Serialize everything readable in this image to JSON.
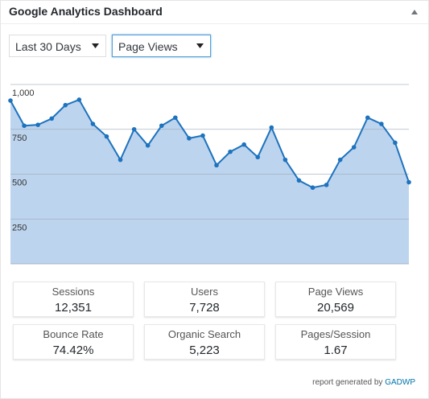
{
  "widget": {
    "title": "Google Analytics Dashboard",
    "toggle_icon": "collapse-arrow-up-icon"
  },
  "controls": {
    "period": {
      "selected": "Last 30 Days",
      "icon": "dropdown-arrow-icon"
    },
    "metric": {
      "selected": "Page Views",
      "icon": "dropdown-arrow-icon"
    }
  },
  "chart_data": {
    "type": "area",
    "title": "",
    "xlabel": "",
    "ylabel": "",
    "y_ticks": [
      "250",
      "500",
      "750",
      "1,000"
    ],
    "y_tick_values": [
      250,
      500,
      750,
      1000
    ],
    "ylim": [
      0,
      1000
    ],
    "grid": true,
    "series": [
      {
        "values": [
          910,
          770,
          775,
          810,
          885,
          915,
          780,
          710,
          580,
          750,
          660,
          770,
          815,
          700,
          715,
          550,
          625,
          665,
          595,
          760,
          580,
          465,
          425,
          440,
          580,
          650,
          815,
          780,
          675,
          455
        ]
      }
    ],
    "line_color": "#1e73be",
    "fill_color": "#bdd4ee"
  },
  "stats": [
    {
      "label": "Sessions",
      "value": "12,351"
    },
    {
      "label": "Users",
      "value": "7,728"
    },
    {
      "label": "Page Views",
      "value": "20,569"
    },
    {
      "label": "Bounce Rate",
      "value": "74.42%"
    },
    {
      "label": "Organic Search",
      "value": "5,223"
    },
    {
      "label": "Pages/Session",
      "value": "1.67"
    }
  ],
  "footer": {
    "text": "report generated by",
    "link": "GADWP"
  }
}
